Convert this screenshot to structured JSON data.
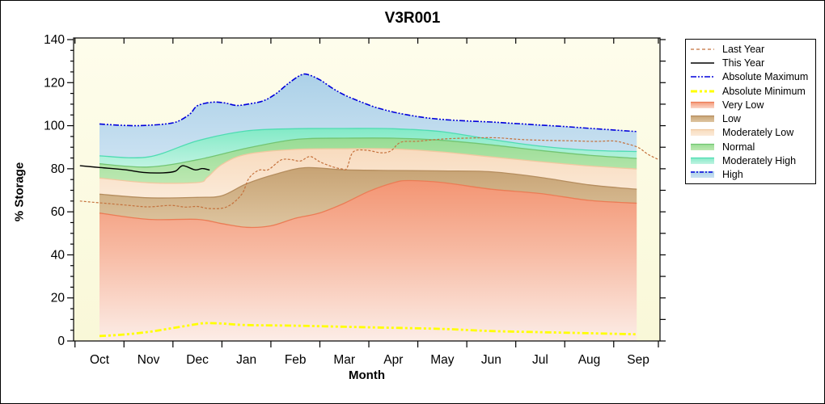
{
  "window": {
    "background": "#FFFFFF",
    "border_color": "#000000"
  },
  "chart_data": {
    "type": "area",
    "title": "V3R001",
    "xlabel": "Month",
    "ylabel": "% Storage",
    "months": [
      "Oct",
      "Nov",
      "Dec",
      "Jan",
      "Feb",
      "Mar",
      "Apr",
      "May",
      "Jun",
      "Jul",
      "Aug",
      "Sep"
    ],
    "ylim": [
      0,
      140
    ],
    "y_tick_step": 20,
    "y_minor_step": 5,
    "y_right_step": 10,
    "grid": false,
    "legend_position": "right",
    "plot_bg_stops": [
      [
        0,
        "#FEFDEC"
      ],
      [
        1,
        "#F9F8D8"
      ]
    ],
    "series": {
      "absolute_maximum": {
        "label": "Absolute Maximum",
        "color": "#0000DC",
        "width": 1.6,
        "dash": "7 2 2 2 2 2",
        "x": [
          0,
          0.35,
          0.7,
          1,
          1.35,
          1.6,
          1.85,
          2.0,
          2.3,
          2.55,
          2.8,
          3.05,
          3.35,
          3.6,
          3.85,
          4.1,
          4.25,
          4.5,
          4.75,
          5,
          5.3,
          5.6,
          5.9,
          6.2,
          6.6,
          7,
          7.5,
          8,
          8.5,
          9,
          9.5,
          10,
          10.5,
          10.97
        ],
        "v": [
          100.8,
          100.3,
          100.0,
          100.2,
          100.8,
          102,
          105.5,
          109.3,
          110.9,
          110.6,
          109.4,
          110.1,
          111.6,
          114.8,
          119.5,
          123.4,
          123.8,
          121.3,
          117.5,
          114.3,
          111.4,
          108.8,
          106.9,
          105.4,
          103.9,
          102.9,
          102.2,
          101.7,
          101,
          100.3,
          99.6,
          98.8,
          98,
          97.3
        ]
      },
      "moderately_high_top": {
        "edge": "#4EDCB2",
        "x": [
          0,
          1,
          2,
          3,
          4,
          5,
          6,
          7,
          8,
          9,
          10,
          10.97
        ],
        "v": [
          86,
          85.5,
          93,
          97.6,
          98.6,
          98.7,
          98.6,
          97.2,
          93.6,
          90.5,
          88.6,
          88
        ]
      },
      "normal_top": {
        "edge": "#72C572",
        "x": [
          0,
          1,
          2,
          3,
          4,
          5,
          6,
          7,
          8,
          9,
          10,
          10.97
        ],
        "v": [
          82.3,
          80.8,
          84.2,
          89.5,
          93.6,
          94.2,
          94.2,
          93.2,
          91.1,
          88.5,
          86.3,
          84.8
        ]
      },
      "moderately_low_top": {
        "edge": "#F0C9A0",
        "x": [
          0,
          1,
          2,
          2.2,
          2.5,
          3,
          4,
          5,
          6,
          7,
          8,
          9,
          10,
          10.97
        ],
        "v": [
          75.7,
          73.5,
          73.6,
          76,
          82,
          86.7,
          89,
          89.3,
          89.2,
          87.8,
          85.5,
          83.3,
          81.3,
          79.9
        ]
      },
      "low_top": {
        "edge": "#B58D5E",
        "x": [
          0,
          1,
          2,
          2.5,
          3,
          3.6,
          4.2,
          5,
          6,
          7,
          8,
          9,
          10,
          10.97
        ],
        "v": [
          68.2,
          66.5,
          66.7,
          67.5,
          73,
          77.5,
          80.5,
          79.5,
          79.2,
          79,
          78.6,
          76,
          72.5,
          70.5
        ]
      },
      "very_low_top": {
        "edge": "#EB7C55",
        "x": [
          0,
          1,
          2,
          2.5,
          3,
          3.5,
          4,
          4.5,
          5,
          5.5,
          6,
          6.3,
          7,
          8,
          9,
          10,
          10.97
        ],
        "v": [
          59.4,
          56.5,
          56.5,
          54.5,
          52.8,
          53.5,
          57,
          59.5,
          64,
          69.5,
          73.5,
          74.5,
          73.6,
          70.5,
          68.5,
          65.3,
          64
        ]
      },
      "absolute_minimum": {
        "label": "Absolute Minimum",
        "color": "#FFFF00",
        "width": 2.8,
        "dash": "8 3 3 3 3 3",
        "x": [
          0,
          0.5,
          1,
          1.5,
          2,
          2.2,
          2.5,
          3,
          4,
          5,
          6,
          7,
          8,
          9,
          10,
          10.97
        ],
        "v": [
          2.3,
          3,
          4.2,
          6,
          7.9,
          8.3,
          8.1,
          7.4,
          7.1,
          6.6,
          6.1,
          5.6,
          4.6,
          4.1,
          3.6,
          3.1
        ]
      },
      "last_year": {
        "label": "Last Year",
        "color": "#C4713C",
        "width": 1.2,
        "dash": "3 2",
        "x": [
          -0.4,
          0,
          0.6,
          1,
          1.45,
          1.75,
          2,
          2.25,
          2.6,
          2.9,
          3.05,
          3.25,
          3.45,
          3.7,
          3.9,
          4.1,
          4.3,
          4.5,
          4.75,
          4.95,
          5.05,
          5.18,
          5.45,
          5.75,
          5.95,
          6.15,
          6.5,
          7,
          7.6,
          8.1,
          8.6,
          9.1,
          9.6,
          10.1,
          10.5,
          10.75,
          11,
          11.2,
          11.42
        ],
        "v": [
          65,
          64.2,
          63,
          62.3,
          63,
          62.2,
          62.5,
          61.5,
          62.3,
          68,
          75.5,
          79.3,
          79.6,
          84,
          84.3,
          83.6,
          85.7,
          83.2,
          81,
          79.9,
          80.2,
          87.8,
          88.6,
          87.4,
          88.3,
          92.3,
          92.8,
          93.8,
          94.3,
          94.4,
          93.6,
          93.2,
          93,
          92.7,
          92.9,
          91.7,
          89.9,
          86.7,
          84.2
        ]
      },
      "this_year": {
        "label": "This Year",
        "color": "#000000",
        "width": 1.4,
        "dash": "",
        "x": [
          -0.4,
          0,
          0.5,
          0.9,
          1.3,
          1.55,
          1.7,
          1.95,
          2.1,
          2.25
        ],
        "v": [
          81.4,
          80.6,
          79.6,
          78.3,
          78.1,
          78.9,
          81.4,
          79.5,
          80.1,
          79.4
        ]
      }
    },
    "bands": [
      {
        "name": "very_low",
        "label": "Very Low",
        "upper": "very_low_top",
        "lower": null,
        "stops": [
          [
            0,
            "#F39573"
          ],
          [
            0.45,
            "#F7BBA4"
          ],
          [
            1,
            "#FCEDE7"
          ]
        ]
      },
      {
        "name": "low",
        "label": "Low",
        "upper": "low_top",
        "lower": "very_low_top",
        "stops": [
          [
            0,
            "#C7A374"
          ],
          [
            1,
            "#DEC5A0"
          ]
        ]
      },
      {
        "name": "moderately_low",
        "label": "Moderately Low",
        "upper": "moderately_low_top",
        "lower": "low_top",
        "stops": [
          [
            0,
            "#F8DBBE"
          ],
          [
            1,
            "#FBEAD8"
          ]
        ]
      },
      {
        "name": "normal",
        "label": "Normal",
        "upper": "normal_top",
        "lower": "moderately_low_top",
        "stops": [
          [
            0,
            "#98DC94"
          ],
          [
            1,
            "#BDE8B2"
          ]
        ]
      },
      {
        "name": "moderately_high",
        "label": "Moderately High",
        "upper": "moderately_high_top",
        "lower": "normal_top",
        "stops": [
          [
            0,
            "#82EAC6"
          ],
          [
            1,
            "#C0F3E2"
          ]
        ]
      },
      {
        "name": "high",
        "label": "High",
        "upper": "absolute_maximum",
        "lower": "moderately_high_top",
        "stops": [
          [
            0,
            "#ACD1E8"
          ],
          [
            1,
            "#CAE1F1"
          ]
        ]
      }
    ]
  },
  "legend": {
    "items": [
      {
        "id": "last-year",
        "label": "Last Year",
        "type": "line",
        "color": "#C4713C",
        "width": 1.2,
        "dash": "4 3"
      },
      {
        "id": "this-year",
        "label": "This Year",
        "type": "line",
        "color": "#000000",
        "width": 1.4,
        "dash": ""
      },
      {
        "id": "absolute-maximum",
        "label": "Absolute Maximum",
        "type": "line",
        "color": "#0000DC",
        "width": 1.6,
        "dash": "7 2 2 2 2 2"
      },
      {
        "id": "absolute-minimum",
        "label": "Absolute Minimum",
        "type": "line",
        "color": "#FFFF00",
        "width": 3,
        "dash": "8 3 3 3 3 3"
      },
      {
        "id": "very-low",
        "label": "Very Low",
        "type": "band",
        "edge": "#EB7C55",
        "stops": [
          [
            0,
            "#F39573"
          ],
          [
            1,
            "#FBD6C8"
          ]
        ]
      },
      {
        "id": "low",
        "label": "Low",
        "type": "band",
        "edge": "#B58D5E",
        "stops": [
          [
            0,
            "#C7A374"
          ],
          [
            1,
            "#DEC5A0"
          ]
        ]
      },
      {
        "id": "moderately-low",
        "label": "Moderately Low",
        "type": "band",
        "edge": "#F0C9A0",
        "stops": [
          [
            0,
            "#F8DBBE"
          ],
          [
            1,
            "#FBEAD8"
          ]
        ]
      },
      {
        "id": "normal",
        "label": "Normal",
        "type": "band",
        "edge": "#72C572",
        "stops": [
          [
            0,
            "#98DC94"
          ],
          [
            1,
            "#BDE8B2"
          ]
        ]
      },
      {
        "id": "moderately-high",
        "label": "Moderately High",
        "type": "band",
        "edge": "#4EDCB2",
        "stops": [
          [
            0,
            "#82EAC6"
          ],
          [
            1,
            "#C0F3E2"
          ]
        ]
      },
      {
        "id": "high",
        "label": "High",
        "type": "band",
        "edge": null,
        "stops": [
          [
            0,
            "#ACD1E8"
          ],
          [
            1,
            "#CAE1F1"
          ]
        ],
        "overlay_line": {
          "color": "#0000DC",
          "width": 1.4,
          "dash": "5 2 2 2"
        }
      }
    ]
  }
}
